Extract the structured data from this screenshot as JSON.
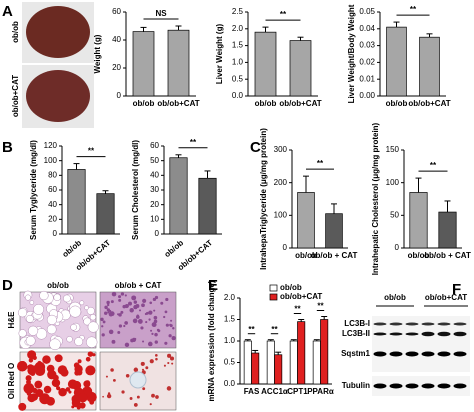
{
  "panel_labels": [
    "A",
    "B",
    "C",
    "D",
    "E",
    "F"
  ],
  "photo_labels": [
    "ob/ob",
    "ob/ob+CAT"
  ],
  "histology": {
    "columns": [
      "ob/ob",
      "ob/ob + CAT"
    ],
    "rows": [
      "H&E",
      "Oil Red O"
    ]
  },
  "blot": {
    "columns": [
      "ob/ob",
      "ob/ob+CAT"
    ],
    "rows": [
      "LC3B-I",
      "LC3B-II",
      "Sqstm1",
      "Tubulin"
    ]
  },
  "chart_data": [
    {
      "type": "bar",
      "ylabel": "Weight (g)",
      "categories": [
        "ob/ob",
        "ob/ob+CAT"
      ],
      "values": [
        46,
        47
      ],
      "errors": [
        3,
        3
      ],
      "colors": [
        "#a6a6a6",
        "#a6a6a6"
      ],
      "ylim": [
        0,
        60
      ],
      "yticks": [
        0,
        20,
        40,
        60
      ],
      "significance": "NS"
    },
    {
      "type": "bar",
      "ylabel": "Liver Weight (g)",
      "categories": [
        "ob/ob",
        "ob/ob+CAT"
      ],
      "values": [
        1.9,
        1.65
      ],
      "errors": [
        0.15,
        0.1
      ],
      "colors": [
        "#a6a6a6",
        "#a6a6a6"
      ],
      "ylim": [
        0,
        2.5
      ],
      "yticks": [
        {
          "value": 0,
          "label": "0.0"
        },
        0.5,
        {
          "value": 1,
          "label": "1.0"
        },
        1.5,
        {
          "value": 2,
          "label": "2.0"
        },
        2.5
      ],
      "significance": "**"
    },
    {
      "type": "bar",
      "ylabel": "Liver Weight/Body Weight",
      "categories": [
        "ob/ob",
        "ob/ob+CAT"
      ],
      "values": [
        0.041,
        0.035
      ],
      "errors": [
        0.003,
        0.002
      ],
      "colors": [
        "#a6a6a6",
        "#a6a6a6"
      ],
      "ylim": [
        0,
        0.05
      ],
      "yticks": [
        {
          "value": 0,
          "label": "0.00"
        },
        0.01,
        0.02,
        0.03,
        0.04,
        0.05
      ],
      "significance": "**"
    },
    {
      "type": "bar",
      "ylabel": "Serum Tyglyceride (mg/dl)",
      "categories": [
        "ob/ob",
        "ob/ob+CAT"
      ],
      "values": [
        88,
        55
      ],
      "errors": [
        8,
        4
      ],
      "colors": [
        "#8c8c8c",
        "#5a5a5a"
      ],
      "ylim": [
        0,
        120
      ],
      "yticks": [
        0,
        20,
        40,
        60,
        80,
        100,
        120
      ],
      "significance": "**"
    },
    {
      "type": "bar",
      "ylabel": "Serum Cholesterol (mg/dl)",
      "categories": [
        "ob/ob",
        "ob/ob+CAT"
      ],
      "values": [
        52,
        38
      ],
      "errors": [
        2,
        5
      ],
      "colors": [
        "#8c8c8c",
        "#5a5a5a"
      ],
      "ylim": [
        0,
        60
      ],
      "yticks": [
        0,
        10,
        20,
        30,
        40,
        50,
        60
      ],
      "significance": "**"
    },
    {
      "type": "bar",
      "ylabel": "IntrahepaTriglyceride (μg/mg protein)",
      "categories": [
        "ob/ob",
        "ob/ob + CAT"
      ],
      "values": [
        170,
        105
      ],
      "errors": [
        50,
        30
      ],
      "colors": [
        "#a6a6a6",
        "#5a5a5a"
      ],
      "ylim": [
        0,
        300
      ],
      "yticks": [
        0,
        100,
        200,
        300
      ],
      "significance": "**"
    },
    {
      "type": "bar",
      "ylabel": "Intrahepatic Cholesterol (μg/mg protein)",
      "categories": [
        "ob/ob",
        "ob/ob + CAT"
      ],
      "values": [
        85,
        55
      ],
      "errors": [
        22,
        17
      ],
      "colors": [
        "#a6a6a6",
        "#5a5a5a"
      ],
      "ylim": [
        0,
        150
      ],
      "yticks": [
        0,
        50,
        100,
        150
      ],
      "significance": "**"
    },
    {
      "type": "bar",
      "ylabel": "mRNA expression (fold change)",
      "categories": [
        "FAS",
        "ACC1α",
        "CPT1",
        "PPARα"
      ],
      "series": [
        {
          "name": "ob/ob",
          "color": "#ffffff",
          "values": [
            1,
            1,
            1,
            1
          ],
          "errors": [
            0.03,
            0.03,
            0.03,
            0.03
          ]
        },
        {
          "name": "ob/ob+CAT",
          "color": "#e02020",
          "values": [
            0.72,
            0.68,
            1.45,
            1.5
          ],
          "errors": [
            0.06,
            0.06,
            0.05,
            0.07
          ]
        }
      ],
      "ylim": [
        0,
        2
      ],
      "yticks": [
        {
          "value": 0,
          "label": "0.0"
        },
        0.5,
        {
          "value": 1,
          "label": "1.0"
        },
        1.5,
        {
          "value": 2,
          "label": "2.0"
        }
      ],
      "significance": [
        "**",
        "**",
        "**",
        "**"
      ]
    }
  ]
}
